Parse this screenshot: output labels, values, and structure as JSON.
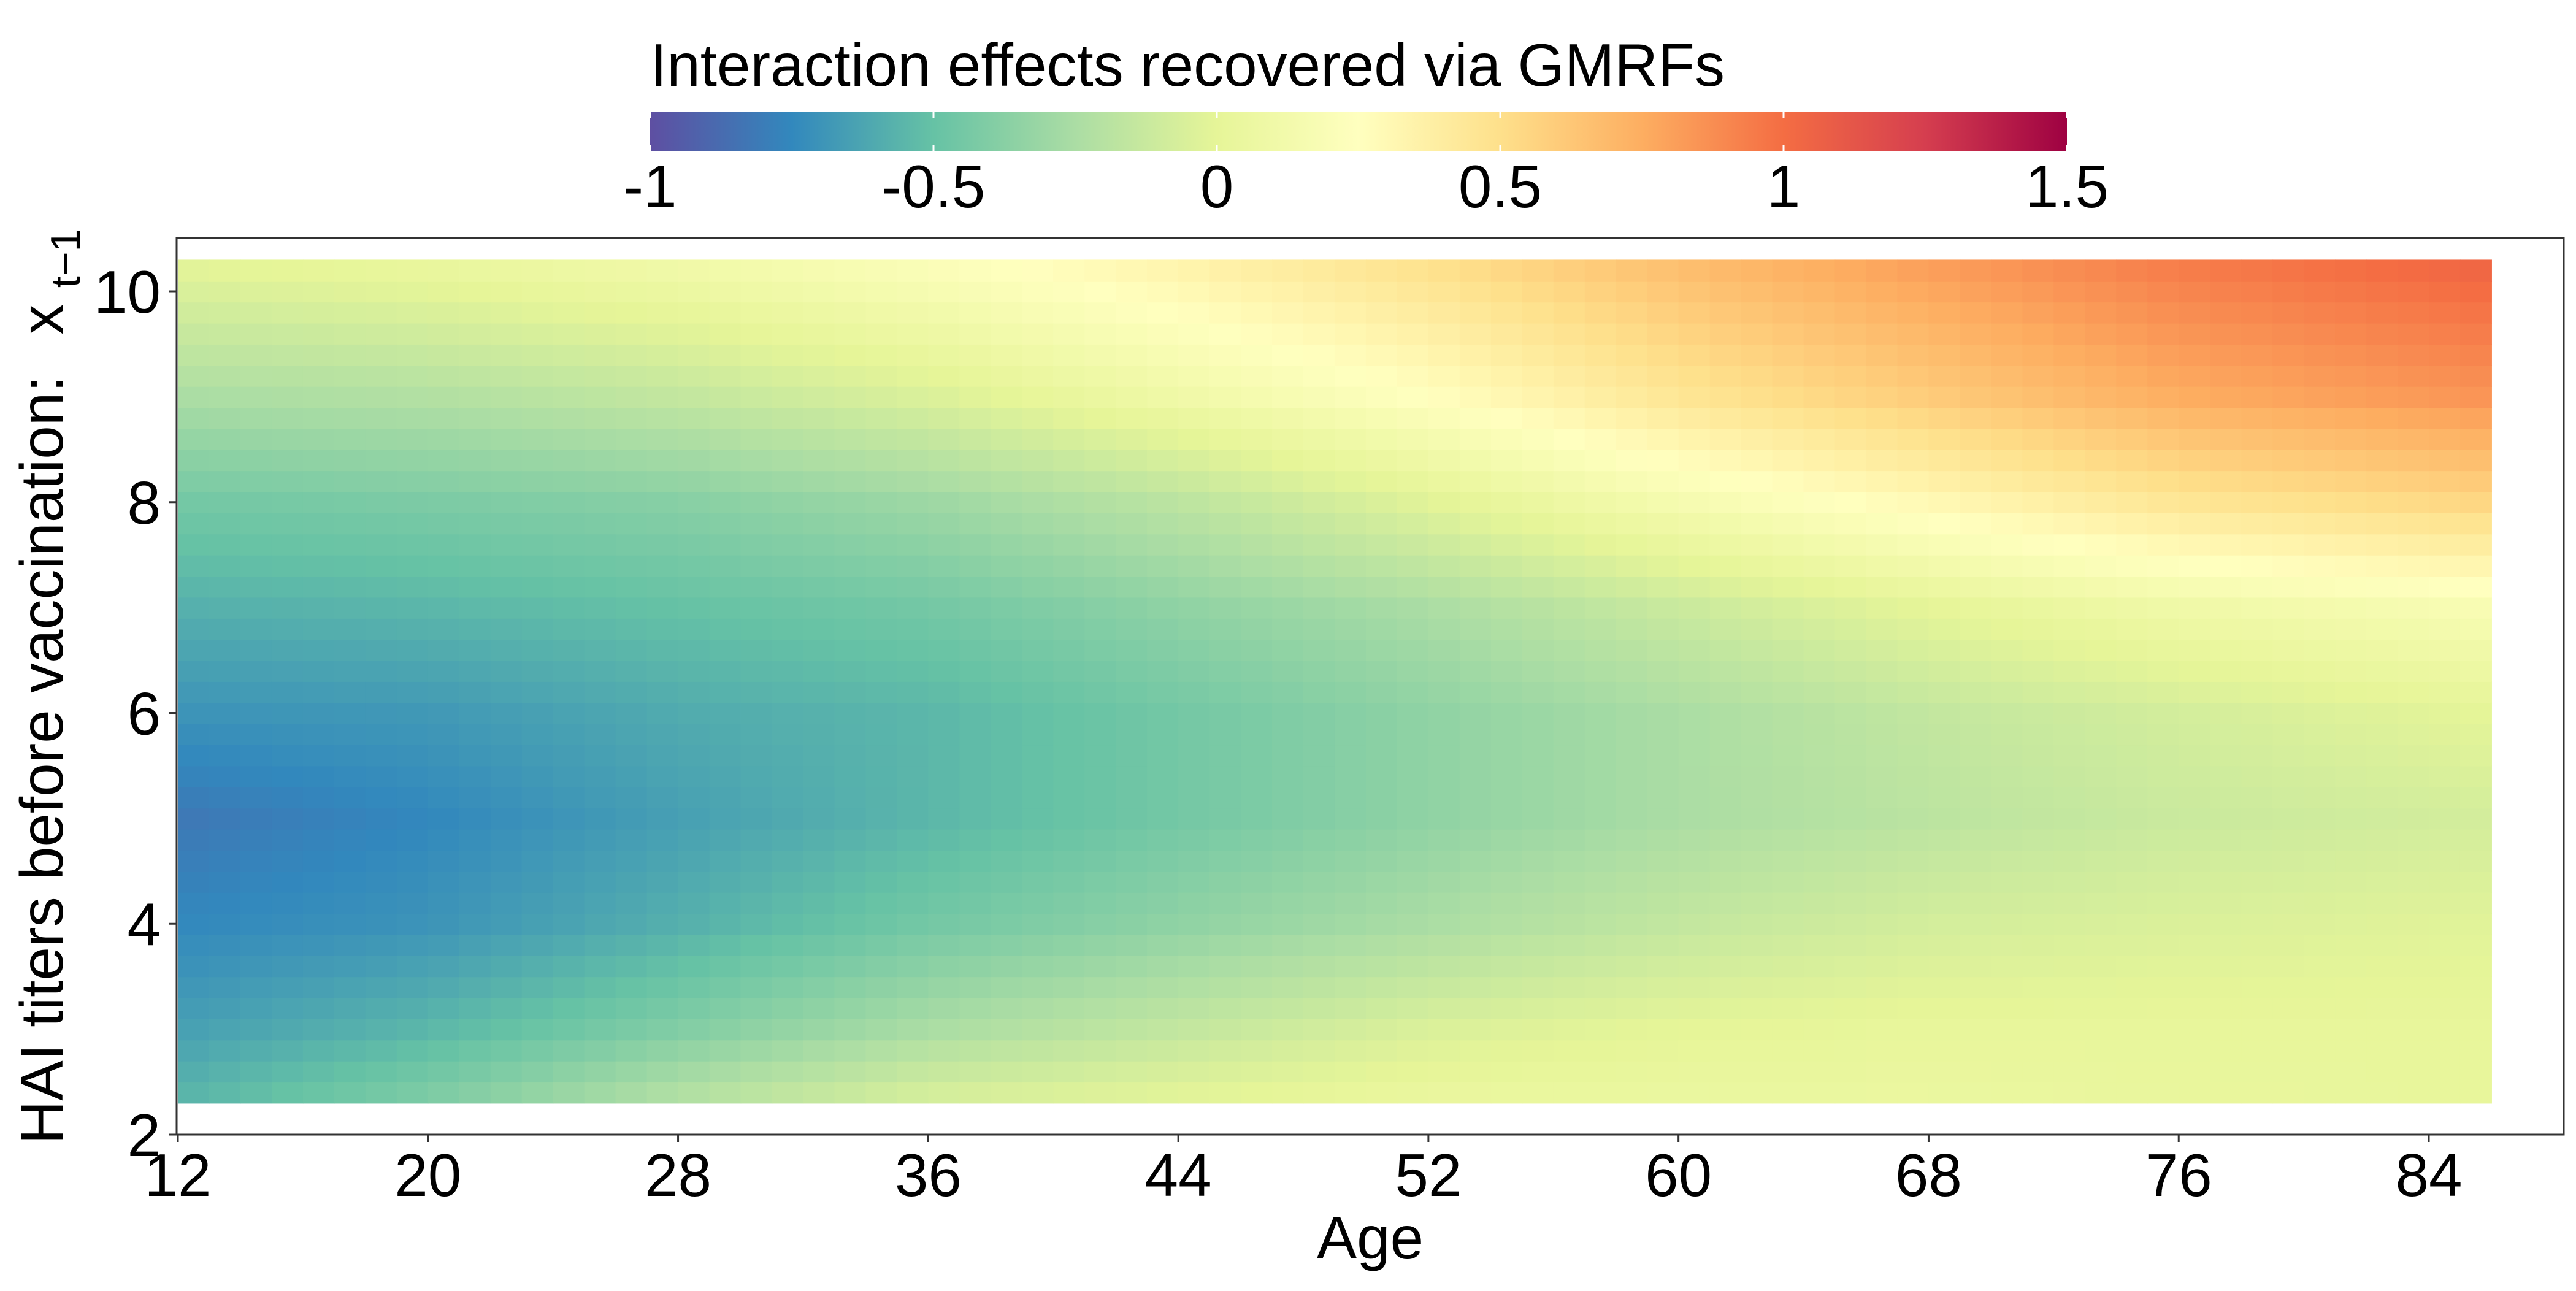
{
  "chart_data": {
    "type": "heatmap",
    "title": "",
    "xlabel": "Age",
    "ylabel": "HAI titers before vaccination:",
    "ylabel_math": {
      "base": "x",
      "subscript": "t−1"
    },
    "xlim": [
      12,
      86
    ],
    "ylim": [
      2,
      10.5
    ],
    "data_x_range": [
      12,
      86
    ],
    "data_y_range": [
      2.3,
      10.3
    ],
    "x_ticks": [
      12,
      20,
      28,
      36,
      44,
      52,
      60,
      68,
      76,
      84
    ],
    "y_ticks": [
      2,
      4,
      6,
      8,
      10
    ],
    "x_tick_labels": [
      "12",
      "20",
      "28",
      "36",
      "44",
      "52",
      "60",
      "68",
      "76",
      "84"
    ],
    "y_tick_labels": [
      "2",
      "4",
      "6",
      "8",
      "10"
    ],
    "grid": false,
    "colorbar": {
      "title": "Interaction effects recovered via GMRFs",
      "position": "top",
      "range": [
        -1,
        1.5
      ],
      "ticks": [
        -1,
        -0.5,
        0,
        0.5,
        1,
        1.5
      ],
      "tick_labels": [
        "-1",
        "-0.5",
        "0",
        "0.5",
        "1",
        "1.5"
      ],
      "palette": "Spectral",
      "stops": [
        {
          "value": -1.0,
          "color": "#5e4fa2"
        },
        {
          "value": -0.75,
          "color": "#3288bd"
        },
        {
          "value": -0.5,
          "color": "#66c2a5"
        },
        {
          "value": -0.25,
          "color": "#abdda4"
        },
        {
          "value": 0.0,
          "color": "#e6f598"
        },
        {
          "value": 0.25,
          "color": "#ffffbf"
        },
        {
          "value": 0.5,
          "color": "#fee08b"
        },
        {
          "value": 0.75,
          "color": "#fdae61"
        },
        {
          "value": 1.0,
          "color": "#f46d43"
        },
        {
          "value": 1.25,
          "color": "#d53e4f"
        },
        {
          "value": 1.5,
          "color": "#9e0142"
        }
      ]
    },
    "grid_x": [
      12,
      20,
      28,
      36,
      44,
      52,
      60,
      68,
      76,
      86
    ],
    "grid_y": [
      2.3,
      3,
      4,
      5,
      6,
      7,
      8,
      9,
      10.3
    ],
    "z": [
      [
        -0.55,
        -0.4,
        -0.2,
        -0.05,
        0.0,
        0.05,
        0.05,
        0.05,
        0.03,
        0.02
      ],
      [
        -0.65,
        -0.55,
        -0.4,
        -0.25,
        -0.15,
        -0.05,
        0.0,
        0.02,
        0.02,
        0.02
      ],
      [
        -0.75,
        -0.7,
        -0.58,
        -0.45,
        -0.35,
        -0.25,
        -0.15,
        -0.08,
        -0.05,
        -0.02
      ],
      [
        -0.82,
        -0.75,
        -0.65,
        -0.55,
        -0.45,
        -0.35,
        -0.25,
        -0.18,
        -0.12,
        -0.08
      ],
      [
        -0.7,
        -0.68,
        -0.6,
        -0.55,
        -0.45,
        -0.35,
        -0.25,
        -0.15,
        -0.08,
        0.0
      ],
      [
        -0.58,
        -0.55,
        -0.5,
        -0.45,
        -0.35,
        -0.25,
        -0.12,
        0.0,
        0.1,
        0.18
      ],
      [
        -0.45,
        -0.42,
        -0.38,
        -0.3,
        -0.18,
        -0.02,
        0.15,
        0.3,
        0.45,
        0.55
      ],
      [
        -0.25,
        -0.22,
        -0.15,
        -0.05,
        0.1,
        0.25,
        0.45,
        0.6,
        0.75,
        0.85
      ],
      [
        0.0,
        0.05,
        0.12,
        0.22,
        0.35,
        0.5,
        0.68,
        0.82,
        0.95,
        1.05
      ]
    ]
  }
}
